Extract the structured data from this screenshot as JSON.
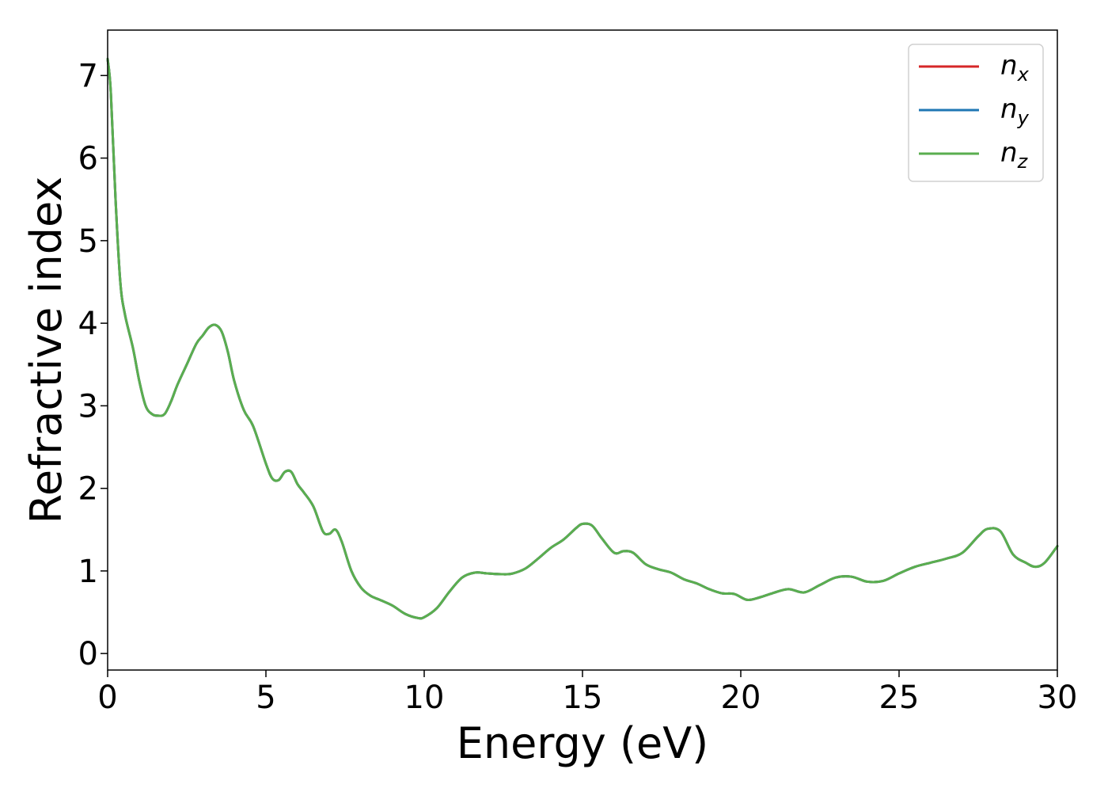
{
  "chart_data": {
    "type": "line",
    "xlabel": "Energy (eV)",
    "ylabel": "Refractive index",
    "xlim": [
      0,
      30
    ],
    "ylim": [
      -0.2,
      7.55
    ],
    "x_ticks": [
      0,
      5,
      10,
      15,
      20,
      25,
      30
    ],
    "y_ticks": [
      0,
      1,
      2,
      3,
      4,
      5,
      6,
      7
    ],
    "grid": false,
    "legend_position": "top-right",
    "legend": [
      {
        "base": "n",
        "sub": "x",
        "color": "#d62728"
      },
      {
        "base": "n",
        "sub": "y",
        "color": "#1f77b4"
      },
      {
        "base": "n",
        "sub": "z",
        "color": "#5aae4f"
      }
    ],
    "x": [
      0,
      0.1,
      0.25,
      0.4,
      0.55,
      0.8,
      1.0,
      1.2,
      1.4,
      1.6,
      1.8,
      2.0,
      2.2,
      2.5,
      2.8,
      3.0,
      3.2,
      3.4,
      3.6,
      3.8,
      4.0,
      4.3,
      4.6,
      5.0,
      5.2,
      5.4,
      5.6,
      5.8,
      6.0,
      6.2,
      6.5,
      6.8,
      7.0,
      7.2,
      7.4,
      7.7,
      8.0,
      8.3,
      8.6,
      9.0,
      9.4,
      9.8,
      10.0,
      10.4,
      10.8,
      11.2,
      11.6,
      12.0,
      12.5,
      12.8,
      13.2,
      13.6,
      14.0,
      14.4,
      14.8,
      15.0,
      15.3,
      15.6,
      16.0,
      16.3,
      16.6,
      17.0,
      17.4,
      17.8,
      18.2,
      18.6,
      19.0,
      19.4,
      19.8,
      20.2,
      20.6,
      21.0,
      21.5,
      22.0,
      22.5,
      23.0,
      23.5,
      24.0,
      24.5,
      25.0,
      25.5,
      26.0,
      26.5,
      27.0,
      27.5,
      27.8,
      28.2,
      28.6,
      29.0,
      29.3,
      29.6,
      30.0
    ],
    "series": [
      {
        "name": "n_x",
        "color": "#d62728",
        "values": [
          7.2,
          6.8,
          5.5,
          4.5,
          4.1,
          3.7,
          3.3,
          3.0,
          2.9,
          2.88,
          2.9,
          3.05,
          3.25,
          3.5,
          3.75,
          3.85,
          3.95,
          3.98,
          3.9,
          3.65,
          3.3,
          2.95,
          2.75,
          2.3,
          2.12,
          2.1,
          2.2,
          2.2,
          2.05,
          1.95,
          1.78,
          1.48,
          1.45,
          1.5,
          1.35,
          1.0,
          0.8,
          0.7,
          0.65,
          0.58,
          0.48,
          0.43,
          0.44,
          0.55,
          0.75,
          0.92,
          0.98,
          0.97,
          0.96,
          0.97,
          1.03,
          1.15,
          1.28,
          1.38,
          1.52,
          1.57,
          1.55,
          1.4,
          1.22,
          1.24,
          1.22,
          1.08,
          1.02,
          0.98,
          0.9,
          0.85,
          0.78,
          0.73,
          0.72,
          0.65,
          0.68,
          0.73,
          0.78,
          0.74,
          0.83,
          0.92,
          0.93,
          0.87,
          0.88,
          0.97,
          1.05,
          1.1,
          1.15,
          1.22,
          1.42,
          1.51,
          1.48,
          1.2,
          1.1,
          1.05,
          1.1,
          1.3
        ]
      },
      {
        "name": "n_y",
        "color": "#1f77b4",
        "values": [
          7.2,
          6.8,
          5.5,
          4.5,
          4.1,
          3.7,
          3.3,
          3.0,
          2.9,
          2.88,
          2.9,
          3.05,
          3.25,
          3.5,
          3.75,
          3.85,
          3.95,
          3.98,
          3.9,
          3.65,
          3.3,
          2.95,
          2.75,
          2.3,
          2.12,
          2.1,
          2.2,
          2.2,
          2.05,
          1.95,
          1.78,
          1.48,
          1.45,
          1.5,
          1.35,
          1.0,
          0.8,
          0.7,
          0.65,
          0.58,
          0.48,
          0.43,
          0.44,
          0.55,
          0.75,
          0.92,
          0.98,
          0.97,
          0.96,
          0.97,
          1.03,
          1.15,
          1.28,
          1.38,
          1.52,
          1.57,
          1.55,
          1.4,
          1.22,
          1.24,
          1.22,
          1.08,
          1.02,
          0.98,
          0.9,
          0.85,
          0.78,
          0.73,
          0.72,
          0.65,
          0.68,
          0.73,
          0.78,
          0.74,
          0.83,
          0.92,
          0.93,
          0.87,
          0.88,
          0.97,
          1.05,
          1.1,
          1.15,
          1.22,
          1.42,
          1.51,
          1.48,
          1.2,
          1.1,
          1.05,
          1.1,
          1.3
        ]
      },
      {
        "name": "n_z",
        "color": "#5aae4f",
        "values": [
          7.2,
          6.8,
          5.5,
          4.5,
          4.1,
          3.7,
          3.3,
          3.0,
          2.9,
          2.88,
          2.9,
          3.05,
          3.25,
          3.5,
          3.75,
          3.85,
          3.95,
          3.98,
          3.9,
          3.65,
          3.3,
          2.95,
          2.75,
          2.3,
          2.12,
          2.1,
          2.2,
          2.2,
          2.05,
          1.95,
          1.78,
          1.48,
          1.45,
          1.5,
          1.35,
          1.0,
          0.8,
          0.7,
          0.65,
          0.58,
          0.48,
          0.43,
          0.44,
          0.55,
          0.75,
          0.92,
          0.98,
          0.97,
          0.96,
          0.97,
          1.03,
          1.15,
          1.28,
          1.38,
          1.52,
          1.57,
          1.55,
          1.4,
          1.22,
          1.24,
          1.22,
          1.08,
          1.02,
          0.98,
          0.9,
          0.85,
          0.78,
          0.73,
          0.72,
          0.65,
          0.68,
          0.73,
          0.78,
          0.74,
          0.83,
          0.92,
          0.93,
          0.87,
          0.88,
          0.97,
          1.05,
          1.1,
          1.15,
          1.22,
          1.42,
          1.51,
          1.48,
          1.2,
          1.1,
          1.05,
          1.1,
          1.3
        ]
      }
    ]
  }
}
